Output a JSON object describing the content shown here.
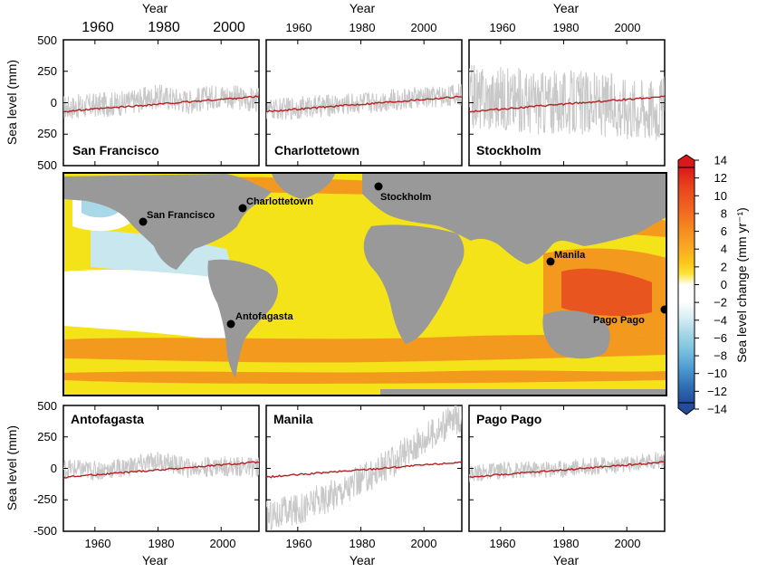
{
  "figure": {
    "top_axis_title": "Year",
    "bottom_axis_title": "Year",
    "left_axis_title": "Sea level (mm)",
    "top_year_ticks": [
      "1960",
      "1980",
      "2000"
    ],
    "bottom_year_ticks": [
      "1960",
      "1980",
      "2000"
    ],
    "top_y_ticks": [
      "500",
      "250",
      "0",
      "250",
      "500"
    ],
    "bottom_y_ticks": [
      "500",
      "250",
      "0",
      "-250",
      "-500"
    ]
  },
  "colorbar": {
    "title": "Sea level change (mm yr⁻¹)",
    "ticks": [
      "14",
      "12",
      "10",
      "8",
      "6",
      "4",
      "2",
      "0",
      "−2",
      "−4",
      "−6",
      "−8",
      "−10",
      "−12",
      "−14"
    ],
    "colors": [
      "#d7191c",
      "#e8431c",
      "#f26522",
      "#f58a1f",
      "#f9a825",
      "#fcc419",
      "#fde135",
      "#ffffff",
      "#ffffff",
      "#d6eef4",
      "#a9d9e8",
      "#79c0de",
      "#4c97cf",
      "#2f6fb4",
      "#234c9a"
    ]
  },
  "map": {
    "stations": [
      {
        "name": "San Francisco"
      },
      {
        "name": "Charlottetown"
      },
      {
        "name": "Stockholm"
      },
      {
        "name": "Manila"
      },
      {
        "name": "Antofagasta"
      },
      {
        "name": "Pago Pago"
      }
    ],
    "colors": {
      "land": "#999999",
      "yellow": "#f5e31a",
      "orange": "#f39a1e",
      "red_orange": "#e8551e",
      "light_blue": "#a9d9e8",
      "white": "#ffffff"
    }
  },
  "chart_data": [
    {
      "type": "line",
      "title": "San Francisco",
      "xlim": [
        1950,
        2012
      ],
      "ylim": [
        -500,
        500
      ],
      "series": [
        {
          "x": [
            1950,
            1960,
            1970,
            1980,
            1990,
            2000,
            2010
          ],
          "y": [
            -40,
            -20,
            0,
            50,
            10,
            60,
            20
          ],
          "noise": 100
        },
        {
          "x": [
            1950,
            2012
          ],
          "y": [
            -70,
            50
          ]
        }
      ]
    },
    {
      "type": "line",
      "title": "Charlottetown",
      "xlim": [
        1950,
        2012
      ],
      "ylim": [
        -500,
        500
      ],
      "series": [
        {
          "x": [
            1950,
            1960,
            1970,
            1980,
            1990,
            2000,
            2010
          ],
          "y": [
            -60,
            -40,
            -20,
            0,
            20,
            40,
            60
          ],
          "noise": 90
        },
        {
          "x": [
            1950,
            2012
          ],
          "y": [
            -70,
            50
          ]
        }
      ]
    },
    {
      "type": "line",
      "title": "Stockholm",
      "xlim": [
        1950,
        2012
      ],
      "ylim": [
        -500,
        500
      ],
      "series": [
        {
          "x": [
            1950,
            1960,
            1970,
            1980,
            1990,
            2000,
            2010
          ],
          "y": [
            50,
            30,
            10,
            0,
            -10,
            -30,
            -40
          ],
          "noise": 260
        },
        {
          "x": [
            1950,
            2012
          ],
          "y": [
            -70,
            50
          ]
        }
      ]
    },
    {
      "type": "line",
      "title": "Antofagasta",
      "xlim": [
        1950,
        2012
      ],
      "ylim": [
        -500,
        500
      ],
      "series": [
        {
          "x": [
            1950,
            1960,
            1970,
            1980,
            1990,
            2000,
            2010
          ],
          "y": [
            0,
            -20,
            10,
            60,
            0,
            20,
            10
          ],
          "noise": 80
        },
        {
          "x": [
            1950,
            2012
          ],
          "y": [
            -70,
            50
          ]
        }
      ]
    },
    {
      "type": "line",
      "title": "Manila",
      "xlim": [
        1950,
        2012
      ],
      "ylim": [
        -500,
        500
      ],
      "series": [
        {
          "x": [
            1950,
            1960,
            1970,
            1980,
            1990,
            2000,
            2010
          ],
          "y": [
            -380,
            -330,
            -220,
            -100,
            50,
            230,
            400
          ],
          "noise": 130
        },
        {
          "x": [
            1950,
            2012
          ],
          "y": [
            -70,
            50
          ]
        }
      ]
    },
    {
      "type": "line",
      "title": "Pago Pago",
      "xlim": [
        1950,
        2012
      ],
      "ylim": [
        -500,
        500
      ],
      "series": [
        {
          "x": [
            1950,
            1960,
            1970,
            1980,
            1990,
            2000,
            2010
          ],
          "y": [
            -40,
            -20,
            -10,
            0,
            20,
            30,
            70
          ],
          "noise": 70
        },
        {
          "x": [
            1950,
            2012
          ],
          "y": [
            -70,
            50
          ]
        }
      ]
    }
  ]
}
